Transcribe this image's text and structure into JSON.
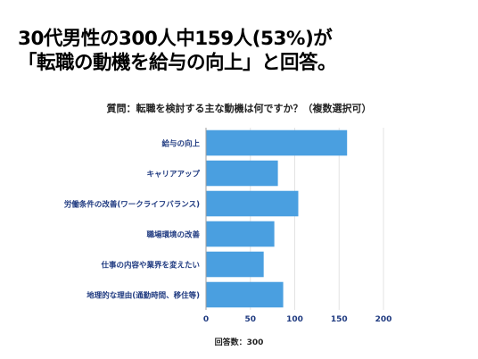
{
  "headline": {
    "line1": "30代男性の300人中159人(53%)が",
    "line2": "「転職の動機を給与の向上」と回答。"
  },
  "question": "質問：転職を検討する主な動機は何ですか？（複数選択可）",
  "footnote": "回答数：300",
  "colors": {
    "bar": "#4a9fe0",
    "grid": "#e3e3e3",
    "axis": "#9e9e9e",
    "label": "#1f3a80",
    "tick": "#1f3a80"
  },
  "chart_data": {
    "type": "bar",
    "orientation": "horizontal",
    "categories": [
      "給与の向上",
      "キャリアアップ",
      "労働条件の改善(ワークライフバランス)",
      "職場環境の改善",
      "仕事の内容や業界を変えたい",
      "地理的な理由(通勤時間、移住等)"
    ],
    "values": [
      159,
      81,
      104,
      77,
      65,
      87
    ],
    "xlim": [
      0,
      200
    ],
    "xticks": [
      0,
      50,
      100,
      150,
      200
    ],
    "grid": true,
    "legend": "none"
  }
}
